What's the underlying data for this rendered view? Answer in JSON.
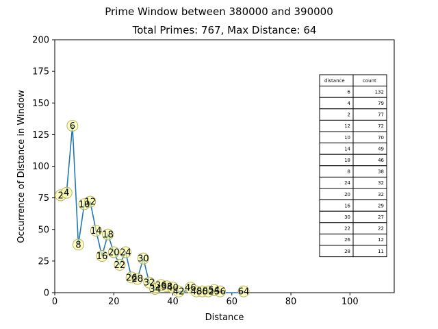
{
  "chart_data": {
    "type": "line",
    "title": "Prime Window between 380000 and 390000",
    "subtitle": "Total Primes: 767, Max Distance: 64",
    "xlabel": "Distance",
    "ylabel": "Occurrence of Distance in Window",
    "xlim": [
      0,
      115
    ],
    "ylim": [
      0,
      200
    ],
    "xticks": [
      0,
      20,
      40,
      60,
      80,
      100
    ],
    "yticks": [
      0,
      25,
      50,
      75,
      100,
      125,
      150,
      175,
      200
    ],
    "grid": false,
    "line_color": "#1f77b4",
    "marker_fill": "#ffff99",
    "marker_edge": "#b4b464",
    "points": [
      {
        "x": 2,
        "y": 77,
        "label": "2"
      },
      {
        "x": 4,
        "y": 79,
        "label": "4"
      },
      {
        "x": 6,
        "y": 132,
        "label": "6"
      },
      {
        "x": 8,
        "y": 38,
        "label": "8"
      },
      {
        "x": 10,
        "y": 70,
        "label": "10"
      },
      {
        "x": 12,
        "y": 72,
        "label": "12"
      },
      {
        "x": 14,
        "y": 49,
        "label": "14"
      },
      {
        "x": 16,
        "y": 29,
        "label": "16"
      },
      {
        "x": 18,
        "y": 46,
        "label": "18"
      },
      {
        "x": 20,
        "y": 32,
        "label": "20"
      },
      {
        "x": 22,
        "y": 22,
        "label": "22"
      },
      {
        "x": 24,
        "y": 32,
        "label": "24"
      },
      {
        "x": 26,
        "y": 12,
        "label": "26"
      },
      {
        "x": 28,
        "y": 11,
        "label": "28"
      },
      {
        "x": 30,
        "y": 27,
        "label": "30"
      },
      {
        "x": 32,
        "y": 8,
        "label": "32"
      },
      {
        "x": 34,
        "y": 3,
        "label": "34"
      },
      {
        "x": 36,
        "y": 6,
        "label": "36"
      },
      {
        "x": 38,
        "y": 5,
        "label": "38"
      },
      {
        "x": 40,
        "y": 4,
        "label": "40"
      },
      {
        "x": 42,
        "y": 1,
        "label": "42"
      },
      {
        "x": 44,
        "y": 1,
        "label": ""
      },
      {
        "x": 46,
        "y": 4,
        "label": "46"
      },
      {
        "x": 48,
        "y": 1,
        "label": "48"
      },
      {
        "x": 50,
        "y": 1,
        "label": "50"
      },
      {
        "x": 52,
        "y": 1,
        "label": "52"
      },
      {
        "x": 54,
        "y": 2,
        "label": "54"
      },
      {
        "x": 56,
        "y": 1,
        "label": "56"
      },
      {
        "x": 58,
        "y": 0,
        "label": ""
      },
      {
        "x": 60,
        "y": 0,
        "label": ""
      },
      {
        "x": 62,
        "y": 0,
        "label": ""
      },
      {
        "x": 64,
        "y": 1,
        "label": "64"
      }
    ],
    "table": {
      "headers": [
        "distance",
        "count"
      ],
      "rows": [
        [
          "6",
          "132"
        ],
        [
          "4",
          "79"
        ],
        [
          "2",
          "77"
        ],
        [
          "12",
          "72"
        ],
        [
          "10",
          "70"
        ],
        [
          "14",
          "49"
        ],
        [
          "18",
          "46"
        ],
        [
          "8",
          "38"
        ],
        [
          "24",
          "32"
        ],
        [
          "20",
          "32"
        ],
        [
          "16",
          "29"
        ],
        [
          "30",
          "27"
        ],
        [
          "22",
          "22"
        ],
        [
          "26",
          "12"
        ],
        [
          "28",
          "11"
        ]
      ]
    }
  }
}
